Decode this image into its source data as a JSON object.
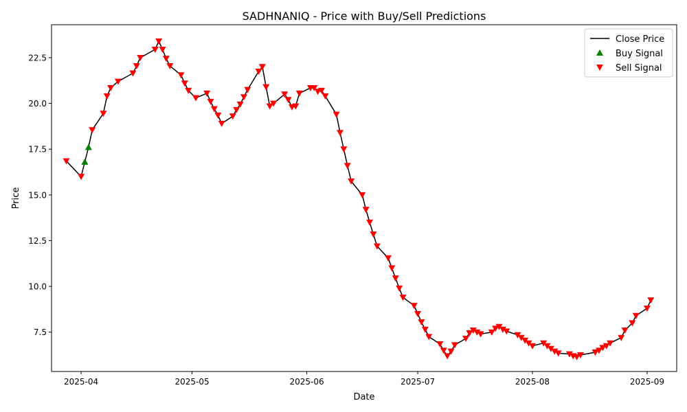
{
  "chart_data": {
    "type": "line",
    "title": "SADHNANIQ - Price with Buy/Sell Predictions",
    "xlabel": "Date",
    "ylabel": "Price",
    "x_range": [
      "2025-03-24",
      "2025-09-09"
    ],
    "ylim": [
      5.35,
      24.3
    ],
    "x_ticks": [
      "2025-04-01",
      "2025-05-01",
      "2025-06-01",
      "2025-07-01",
      "2025-08-01",
      "2025-09-01"
    ],
    "x_tick_labels": [
      "2025-04",
      "2025-05",
      "2025-06",
      "2025-07",
      "2025-08",
      "2025-09"
    ],
    "y_ticks": [
      7.5,
      10.0,
      12.5,
      15.0,
      17.5,
      20.0,
      22.5
    ],
    "y_tick_labels": [
      "7.5",
      "10.0",
      "12.5",
      "15.0",
      "17.5",
      "20.0",
      "22.5"
    ],
    "grid": false,
    "legend_position": "top-right",
    "series": [
      {
        "name": "Close Price",
        "kind": "line",
        "color": "#000000",
        "points": [
          [
            "2025-03-28",
            16.85
          ],
          [
            "2025-04-01",
            16.0
          ],
          [
            "2025-04-02",
            16.8
          ],
          [
            "2025-04-03",
            17.6
          ],
          [
            "2025-04-04",
            18.55
          ],
          [
            "2025-04-07",
            19.45
          ],
          [
            "2025-04-08",
            20.4
          ],
          [
            "2025-04-09",
            20.85
          ],
          [
            "2025-04-11",
            21.2
          ],
          [
            "2025-04-15",
            21.65
          ],
          [
            "2025-04-16",
            22.05
          ],
          [
            "2025-04-17",
            22.5
          ],
          [
            "2025-04-21",
            22.95
          ],
          [
            "2025-04-22",
            23.4
          ],
          [
            "2025-04-23",
            22.95
          ],
          [
            "2025-04-24",
            22.45
          ],
          [
            "2025-04-25",
            22.05
          ],
          [
            "2025-04-28",
            21.55
          ],
          [
            "2025-04-29",
            21.1
          ],
          [
            "2025-04-30",
            20.7
          ],
          [
            "2025-05-02",
            20.3
          ],
          [
            "2025-05-05",
            20.55
          ],
          [
            "2025-05-06",
            20.1
          ],
          [
            "2025-05-07",
            19.7
          ],
          [
            "2025-05-08",
            19.35
          ],
          [
            "2025-05-09",
            18.9
          ],
          [
            "2025-05-12",
            19.3
          ],
          [
            "2025-05-13",
            19.65
          ],
          [
            "2025-05-14",
            19.95
          ],
          [
            "2025-05-15",
            20.35
          ],
          [
            "2025-05-16",
            20.75
          ],
          [
            "2025-05-19",
            21.75
          ],
          [
            "2025-05-20",
            22.0
          ],
          [
            "2025-05-21",
            20.9
          ],
          [
            "2025-05-22",
            19.85
          ],
          [
            "2025-05-23",
            20.0
          ],
          [
            "2025-05-26",
            20.5
          ],
          [
            "2025-05-27",
            20.2
          ],
          [
            "2025-05-28",
            19.8
          ],
          [
            "2025-05-29",
            19.85
          ],
          [
            "2025-05-30",
            20.55
          ],
          [
            "2025-06-02",
            20.85
          ],
          [
            "2025-06-03",
            20.85
          ],
          [
            "2025-06-04",
            20.65
          ],
          [
            "2025-06-05",
            20.7
          ],
          [
            "2025-06-06",
            20.4
          ],
          [
            "2025-06-09",
            19.4
          ],
          [
            "2025-06-10",
            18.4
          ],
          [
            "2025-06-11",
            17.5
          ],
          [
            "2025-06-12",
            16.6
          ],
          [
            "2025-06-13",
            15.75
          ],
          [
            "2025-06-16",
            15.0
          ],
          [
            "2025-06-17",
            14.2
          ],
          [
            "2025-06-18",
            13.5
          ],
          [
            "2025-06-19",
            12.85
          ],
          [
            "2025-06-20",
            12.2
          ],
          [
            "2025-06-23",
            11.55
          ],
          [
            "2025-06-24",
            11.0
          ],
          [
            "2025-06-25",
            10.45
          ],
          [
            "2025-06-26",
            9.9
          ],
          [
            "2025-06-27",
            9.4
          ],
          [
            "2025-06-30",
            8.95
          ],
          [
            "2025-07-01",
            8.5
          ],
          [
            "2025-07-02",
            8.05
          ],
          [
            "2025-07-03",
            7.65
          ],
          [
            "2025-07-04",
            7.25
          ],
          [
            "2025-07-07",
            6.85
          ],
          [
            "2025-07-08",
            6.5
          ],
          [
            "2025-07-09",
            6.2
          ],
          [
            "2025-07-10",
            6.45
          ],
          [
            "2025-07-11",
            6.8
          ],
          [
            "2025-07-14",
            7.15
          ],
          [
            "2025-07-15",
            7.45
          ],
          [
            "2025-07-16",
            7.6
          ],
          [
            "2025-07-17",
            7.5
          ],
          [
            "2025-07-18",
            7.4
          ],
          [
            "2025-07-21",
            7.5
          ],
          [
            "2025-07-22",
            7.7
          ],
          [
            "2025-07-23",
            7.8
          ],
          [
            "2025-07-24",
            7.65
          ],
          [
            "2025-07-25",
            7.55
          ],
          [
            "2025-07-28",
            7.35
          ],
          [
            "2025-07-29",
            7.2
          ],
          [
            "2025-07-30",
            7.05
          ],
          [
            "2025-07-31",
            6.9
          ],
          [
            "2025-08-01",
            6.75
          ],
          [
            "2025-08-04",
            6.9
          ],
          [
            "2025-08-05",
            6.75
          ],
          [
            "2025-08-06",
            6.6
          ],
          [
            "2025-08-07",
            6.45
          ],
          [
            "2025-08-08",
            6.35
          ],
          [
            "2025-08-11",
            6.3
          ],
          [
            "2025-08-12",
            6.2
          ],
          [
            "2025-08-13",
            6.15
          ],
          [
            "2025-08-14",
            6.25
          ],
          [
            "2025-08-18",
            6.4
          ],
          [
            "2025-08-19",
            6.5
          ],
          [
            "2025-08-20",
            6.65
          ],
          [
            "2025-08-21",
            6.75
          ],
          [
            "2025-08-22",
            6.9
          ],
          [
            "2025-08-25",
            7.2
          ],
          [
            "2025-08-26",
            7.6
          ],
          [
            "2025-08-28",
            8.0
          ],
          [
            "2025-08-29",
            8.4
          ],
          [
            "2025-09-01",
            8.8
          ],
          [
            "2025-09-02",
            9.25
          ]
        ]
      },
      {
        "name": "Buy Signal",
        "kind": "scatter",
        "marker": "triangle-up",
        "color": "#008000",
        "points": [
          [
            "2025-04-02",
            16.8
          ],
          [
            "2025-04-03",
            17.6
          ]
        ]
      },
      {
        "name": "Sell Signal",
        "kind": "scatter",
        "marker": "triangle-down",
        "color": "#ff0000",
        "points": [
          [
            "2025-03-28",
            16.85
          ],
          [
            "2025-04-01",
            16.0
          ],
          [
            "2025-04-04",
            18.55
          ],
          [
            "2025-04-07",
            19.45
          ],
          [
            "2025-04-08",
            20.4
          ],
          [
            "2025-04-09",
            20.85
          ],
          [
            "2025-04-11",
            21.2
          ],
          [
            "2025-04-15",
            21.65
          ],
          [
            "2025-04-16",
            22.05
          ],
          [
            "2025-04-17",
            22.5
          ],
          [
            "2025-04-21",
            22.95
          ],
          [
            "2025-04-22",
            23.4
          ],
          [
            "2025-04-23",
            22.95
          ],
          [
            "2025-04-24",
            22.45
          ],
          [
            "2025-04-25",
            22.05
          ],
          [
            "2025-04-28",
            21.55
          ],
          [
            "2025-04-29",
            21.1
          ],
          [
            "2025-04-30",
            20.7
          ],
          [
            "2025-05-02",
            20.3
          ],
          [
            "2025-05-05",
            20.55
          ],
          [
            "2025-05-06",
            20.1
          ],
          [
            "2025-05-07",
            19.7
          ],
          [
            "2025-05-08",
            19.35
          ],
          [
            "2025-05-09",
            18.9
          ],
          [
            "2025-05-12",
            19.3
          ],
          [
            "2025-05-13",
            19.65
          ],
          [
            "2025-05-14",
            19.95
          ],
          [
            "2025-05-15",
            20.35
          ],
          [
            "2025-05-16",
            20.75
          ],
          [
            "2025-05-19",
            21.75
          ],
          [
            "2025-05-20",
            22.0
          ],
          [
            "2025-05-21",
            20.9
          ],
          [
            "2025-05-22",
            19.85
          ],
          [
            "2025-05-23",
            20.0
          ],
          [
            "2025-05-26",
            20.5
          ],
          [
            "2025-05-27",
            20.2
          ],
          [
            "2025-05-28",
            19.8
          ],
          [
            "2025-05-29",
            19.85
          ],
          [
            "2025-05-30",
            20.55
          ],
          [
            "2025-06-02",
            20.85
          ],
          [
            "2025-06-03",
            20.85
          ],
          [
            "2025-06-04",
            20.65
          ],
          [
            "2025-06-05",
            20.7
          ],
          [
            "2025-06-06",
            20.4
          ],
          [
            "2025-06-09",
            19.4
          ],
          [
            "2025-06-10",
            18.4
          ],
          [
            "2025-06-11",
            17.5
          ],
          [
            "2025-06-12",
            16.6
          ],
          [
            "2025-06-13",
            15.75
          ],
          [
            "2025-06-16",
            15.0
          ],
          [
            "2025-06-17",
            14.2
          ],
          [
            "2025-06-18",
            13.5
          ],
          [
            "2025-06-19",
            12.85
          ],
          [
            "2025-06-20",
            12.2
          ],
          [
            "2025-06-23",
            11.55
          ],
          [
            "2025-06-24",
            11.0
          ],
          [
            "2025-06-25",
            10.45
          ],
          [
            "2025-06-26",
            9.9
          ],
          [
            "2025-06-27",
            9.4
          ],
          [
            "2025-06-30",
            8.95
          ],
          [
            "2025-07-01",
            8.5
          ],
          [
            "2025-07-02",
            8.05
          ],
          [
            "2025-07-03",
            7.65
          ],
          [
            "2025-07-04",
            7.25
          ],
          [
            "2025-07-07",
            6.85
          ],
          [
            "2025-07-08",
            6.5
          ],
          [
            "2025-07-09",
            6.2
          ],
          [
            "2025-07-10",
            6.45
          ],
          [
            "2025-07-11",
            6.8
          ],
          [
            "2025-07-14",
            7.15
          ],
          [
            "2025-07-15",
            7.45
          ],
          [
            "2025-07-16",
            7.6
          ],
          [
            "2025-07-17",
            7.5
          ],
          [
            "2025-07-18",
            7.4
          ],
          [
            "2025-07-21",
            7.5
          ],
          [
            "2025-07-22",
            7.7
          ],
          [
            "2025-07-23",
            7.8
          ],
          [
            "2025-07-24",
            7.65
          ],
          [
            "2025-07-25",
            7.55
          ],
          [
            "2025-07-28",
            7.35
          ],
          [
            "2025-07-29",
            7.2
          ],
          [
            "2025-07-30",
            7.05
          ],
          [
            "2025-07-31",
            6.9
          ],
          [
            "2025-08-01",
            6.75
          ],
          [
            "2025-08-04",
            6.9
          ],
          [
            "2025-08-05",
            6.75
          ],
          [
            "2025-08-06",
            6.6
          ],
          [
            "2025-08-07",
            6.45
          ],
          [
            "2025-08-08",
            6.35
          ],
          [
            "2025-08-11",
            6.3
          ],
          [
            "2025-08-12",
            6.2
          ],
          [
            "2025-08-13",
            6.15
          ],
          [
            "2025-08-14",
            6.25
          ],
          [
            "2025-08-18",
            6.4
          ],
          [
            "2025-08-19",
            6.5
          ],
          [
            "2025-08-20",
            6.65
          ],
          [
            "2025-08-21",
            6.75
          ],
          [
            "2025-08-22",
            6.9
          ],
          [
            "2025-08-25",
            7.2
          ],
          [
            "2025-08-26",
            7.6
          ],
          [
            "2025-08-28",
            8.0
          ],
          [
            "2025-08-29",
            8.4
          ],
          [
            "2025-09-01",
            8.8
          ],
          [
            "2025-09-02",
            9.25
          ]
        ]
      }
    ]
  }
}
